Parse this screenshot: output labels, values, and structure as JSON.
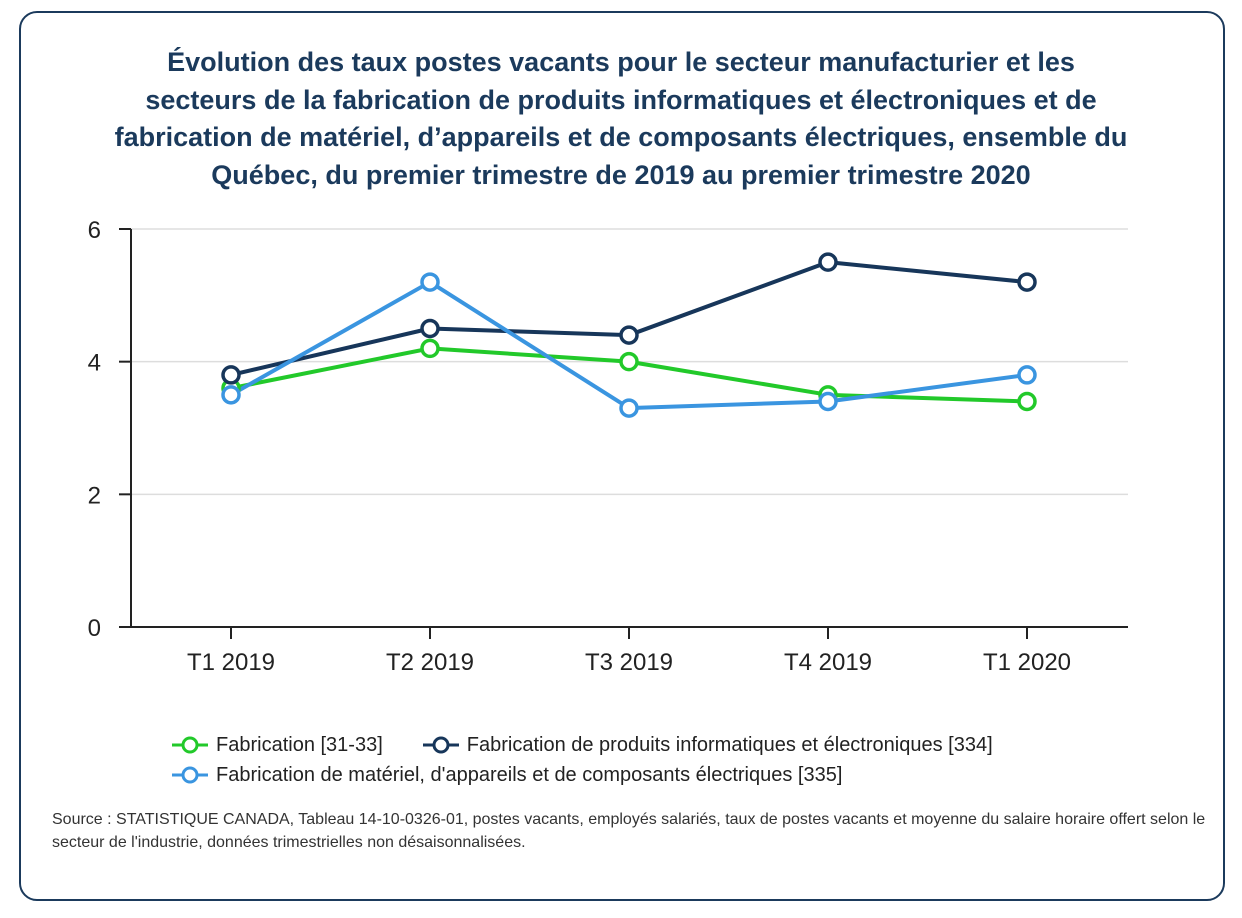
{
  "chart_data": {
    "type": "line",
    "title": "Évolution des taux postes vacants pour le secteur manufacturier et les secteurs de la fabrication de produits informatiques et électroniques et de fabrication de matériel, d’appareils et de composants électriques, ensemble du Québec, du premier trimestre de 2019 au premier trimestre 2020",
    "title_lines": [
      "Évolution des taux postes vacants pour le secteur manufacturier et les",
      "secteurs de la fabrication de produits informatiques et électroniques et de",
      "fabrication de matériel, d’appareils et de composants électriques, ensemble du",
      "Québec, du premier trimestre de 2019 au premier trimestre 2020"
    ],
    "xlabel": "",
    "ylabel": "",
    "categories": [
      "T1 2019",
      "T2 2019",
      "T3 2019",
      "T4 2019",
      "T1 2020"
    ],
    "ylim": [
      0,
      6
    ],
    "yticks": [
      0,
      2,
      4,
      6
    ],
    "grid": true,
    "legend_position": "bottom",
    "series": [
      {
        "name": "Fabrication [31-33]",
        "color": "#22c92a",
        "values": [
          3.6,
          4.2,
          4.0,
          3.5,
          3.4
        ]
      },
      {
        "name": "Fabrication de produits informatiques et électroniques [334]",
        "color": "#17365a",
        "values": [
          3.8,
          4.5,
          4.4,
          5.5,
          5.2
        ]
      },
      {
        "name": "Fabrication de matériel, d'appareils et de composants électriques [335]",
        "color": "#3a95e0",
        "values": [
          3.5,
          5.2,
          3.3,
          3.4,
          3.8
        ]
      }
    ]
  },
  "source_text": "Source : STATISTIQUE CANADA, Tableau 14-10-0326-01, postes vacants, employés salariés, taux de postes vacants et moyenne du salaire horaire offert selon le secteur de l'industrie, données trimestrielles non désaisonnalisées."
}
